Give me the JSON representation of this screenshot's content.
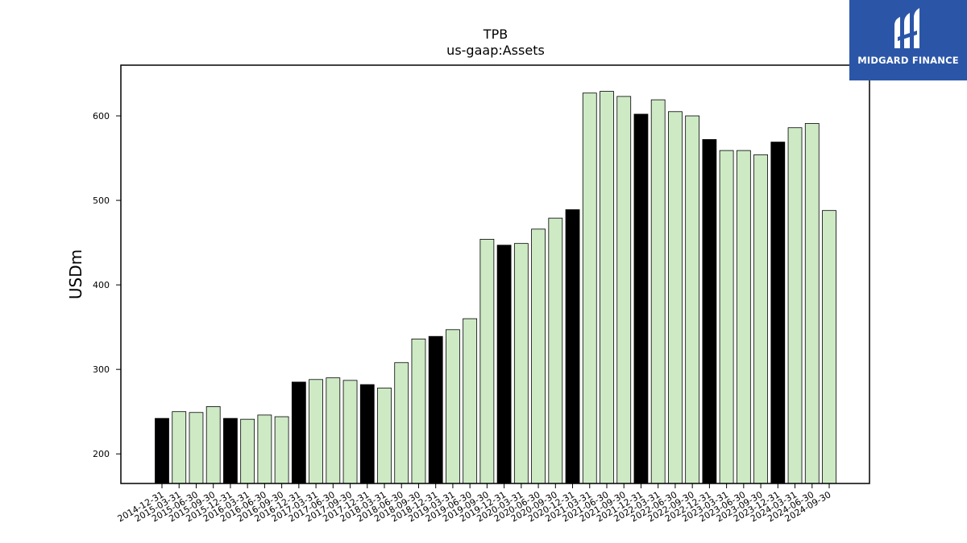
{
  "brand": {
    "name": "MIDGARD FINANCE",
    "bg_color": "#2b56a8",
    "icon": "midgard-logo-icon"
  },
  "chart_data": {
    "type": "bar",
    "title": "TPB",
    "subtitle": "us-gaap:Assets",
    "xlabel": "",
    "ylabel": "USDm",
    "ylim": [
      165,
      660
    ],
    "yticks": [
      200,
      300,
      400,
      500,
      600
    ],
    "grid": false,
    "colors": {
      "annual": "#000000",
      "quarterly": "#cdeac5",
      "edge": "#000000"
    },
    "categories": [
      "2014-12-31",
      "2015-03-31",
      "2015-06-30",
      "2015-09-30",
      "2015-12-31",
      "2016-03-31",
      "2016-06-30",
      "2016-09-30",
      "2016-12-31",
      "2017-03-31",
      "2017-06-30",
      "2017-09-30",
      "2017-12-31",
      "2018-03-31",
      "2018-06-30",
      "2018-09-30",
      "2018-12-31",
      "2019-03-31",
      "2019-06-30",
      "2019-09-30",
      "2019-12-31",
      "2020-03-31",
      "2020-06-30",
      "2020-09-30",
      "2020-12-31",
      "2021-03-31",
      "2021-06-30",
      "2021-09-30",
      "2021-12-31",
      "2022-03-31",
      "2022-06-30",
      "2022-09-30",
      "2022-12-31",
      "2023-03-31",
      "2023-06-30",
      "2023-09-30",
      "2023-12-31",
      "2024-03-31",
      "2024-06-30",
      "2024-09-30"
    ],
    "values": [
      242,
      250,
      249,
      256,
      242,
      241,
      246,
      244,
      285,
      288,
      290,
      287,
      282,
      278,
      308,
      336,
      339,
      347,
      360,
      454,
      447,
      449,
      466,
      479,
      489,
      627,
      629,
      623,
      602,
      619,
      605,
      600,
      572,
      559,
      559,
      554,
      569,
      586,
      591,
      488
    ]
  }
}
